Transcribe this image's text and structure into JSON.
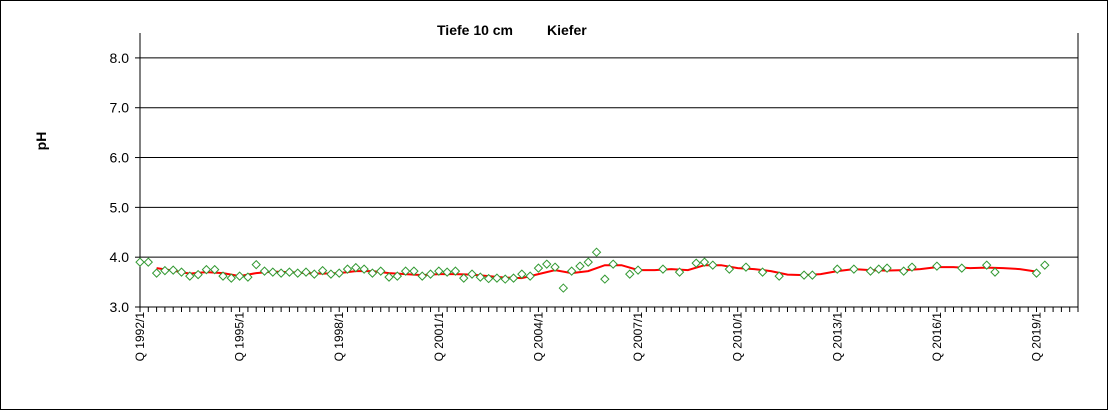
{
  "chart_data": {
    "type": "line",
    "title_depth": "Tiefe  10 cm",
    "title_species": "Kiefer",
    "xlabel": "",
    "ylabel": "pH",
    "ylim": [
      3.0,
      8.5
    ],
    "yticks": [
      "3.0",
      "4.0",
      "5.0",
      "6.0",
      "7.0",
      "8.0"
    ],
    "xlim_quarters": [
      1992.0,
      2020.25
    ],
    "xtick_labels": [
      "Q 1992/1",
      "Q 1995/1",
      "Q 1998/1",
      "Q 2001/1",
      "Q 2004/1",
      "Q 2007/1",
      "Q 2010/1",
      "Q 2013/1",
      "Q 2016/1",
      "Q 2019/1"
    ],
    "xtick_label_years": [
      1992,
      1995,
      1998,
      2001,
      2004,
      2007,
      2010,
      2013,
      2016,
      2019
    ],
    "grid": true,
    "colors": {
      "points": "#339933",
      "trend": "#ff0000",
      "grid": "#000000"
    },
    "series": [
      {
        "type": "scatter",
        "marker": "diamond-open",
        "x": [
          1992.0,
          1992.25,
          1992.5,
          1992.75,
          1993.0,
          1993.25,
          1993.5,
          1993.75,
          1994.0,
          1994.25,
          1994.5,
          1994.75,
          1995.0,
          1995.25,
          1995.5,
          1995.75,
          1996.0,
          1996.25,
          1996.5,
          1996.75,
          1997.0,
          1997.25,
          1997.5,
          1997.75,
          1998.0,
          1998.25,
          1998.5,
          1998.75,
          1999.0,
          1999.25,
          1999.5,
          1999.75,
          2000.0,
          2000.25,
          2000.5,
          2000.75,
          2001.0,
          2001.25,
          2001.5,
          2001.75,
          2002.0,
          2002.25,
          2002.5,
          2002.75,
          2003.0,
          2003.25,
          2003.5,
          2003.75,
          2004.0,
          2004.25,
          2004.5,
          2004.75,
          2005.0,
          2005.25,
          2005.5,
          2005.75,
          2006.0,
          2006.25,
          2006.75,
          2007.0,
          2007.75,
          2008.25,
          2008.75,
          2009.0,
          2009.25,
          2009.75,
          2010.25,
          2010.75,
          2011.25,
          2012.0,
          2012.25,
          2013.0,
          2013.5,
          2014.0,
          2014.25,
          2014.5,
          2015.0,
          2015.25,
          2016.0,
          2016.75,
          2017.5,
          2017.75,
          2019.0,
          2019.25
        ],
        "values": [
          3.9,
          3.9,
          3.68,
          3.73,
          3.74,
          3.7,
          3.62,
          3.65,
          3.75,
          3.75,
          3.62,
          3.58,
          3.62,
          3.6,
          3.85,
          3.72,
          3.7,
          3.68,
          3.7,
          3.68,
          3.7,
          3.66,
          3.73,
          3.66,
          3.68,
          3.76,
          3.79,
          3.76,
          3.68,
          3.72,
          3.6,
          3.62,
          3.72,
          3.72,
          3.62,
          3.66,
          3.72,
          3.7,
          3.72,
          3.58,
          3.66,
          3.6,
          3.57,
          3.58,
          3.56,
          3.58,
          3.66,
          3.62,
          3.78,
          3.86,
          3.8,
          3.38,
          3.72,
          3.82,
          3.9,
          4.1,
          3.56,
          3.86,
          3.66,
          3.74,
          3.76,
          3.7,
          3.88,
          3.9,
          3.84,
          3.76,
          3.8,
          3.7,
          3.62,
          3.64,
          3.64,
          3.76,
          3.76,
          3.72,
          3.76,
          3.78,
          3.72,
          3.8,
          3.82,
          3.78,
          3.84,
          3.7,
          3.68,
          3.84
        ]
      },
      {
        "type": "line",
        "x": [
          1992.5,
          1993.0,
          1993.5,
          1994.0,
          1994.5,
          1995.0,
          1995.5,
          1996.0,
          1996.5,
          1997.0,
          1997.5,
          1998.0,
          1998.5,
          1999.0,
          1999.5,
          2000.0,
          2000.5,
          2001.0,
          2001.5,
          2002.0,
          2002.5,
          2003.0,
          2003.5,
          2004.0,
          2004.5,
          2005.0,
          2005.5,
          2006.0,
          2006.5,
          2007.0,
          2007.5,
          2008.0,
          2008.5,
          2009.0,
          2009.5,
          2010.0,
          2010.5,
          2011.0,
          2011.5,
          2012.0,
          2012.5,
          2013.0,
          2013.5,
          2014.0,
          2014.5,
          2015.0,
          2015.5,
          2016.0,
          2016.5,
          2017.0,
          2017.5,
          2018.0,
          2018.5,
          2019.0
        ],
        "values": [
          3.78,
          3.73,
          3.67,
          3.7,
          3.68,
          3.62,
          3.68,
          3.71,
          3.7,
          3.68,
          3.67,
          3.68,
          3.72,
          3.72,
          3.68,
          3.66,
          3.64,
          3.66,
          3.66,
          3.65,
          3.62,
          3.59,
          3.58,
          3.66,
          3.74,
          3.68,
          3.72,
          3.84,
          3.84,
          3.74,
          3.74,
          3.76,
          3.74,
          3.84,
          3.84,
          3.78,
          3.76,
          3.72,
          3.65,
          3.64,
          3.66,
          3.72,
          3.76,
          3.74,
          3.73,
          3.74,
          3.76,
          3.8,
          3.8,
          3.78,
          3.79,
          3.78,
          3.76,
          3.71
        ]
      }
    ]
  }
}
